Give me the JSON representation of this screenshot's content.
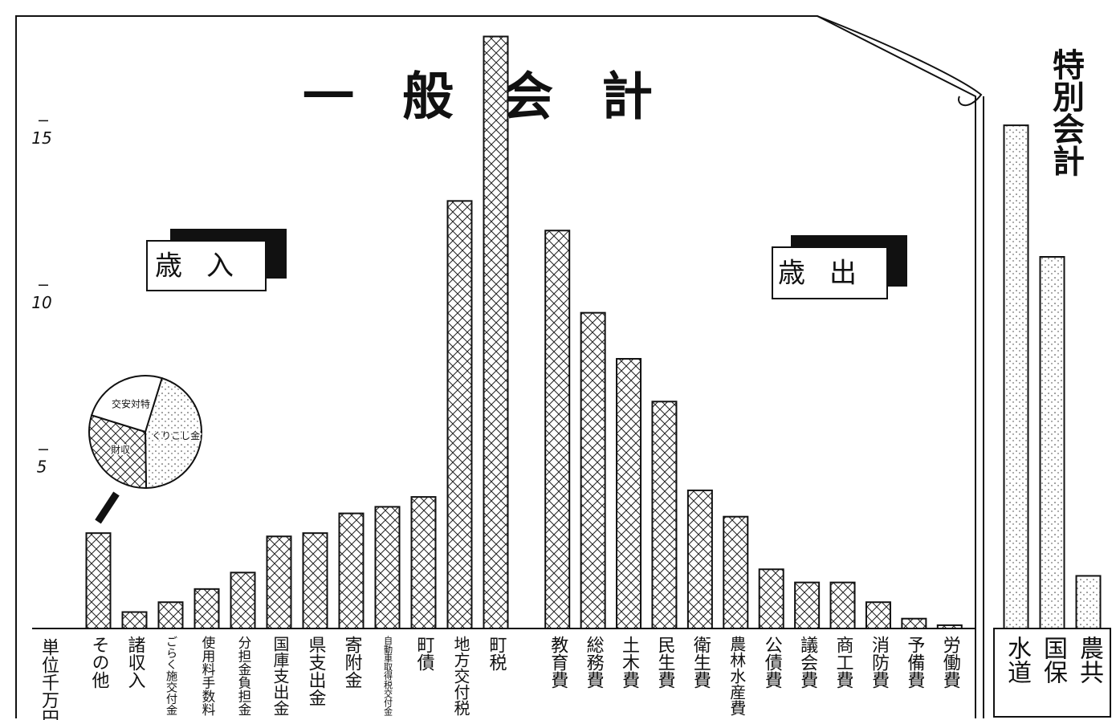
{
  "chart_data": [
    {
      "type": "bar",
      "title": "一般会計",
      "label": "歳入",
      "y_label": "単位千万円",
      "categories": [
        "その他",
        "諸収入",
        "ごらく施交付金",
        "使用料手数料",
        "分担金負担金",
        "国庫支出金",
        "県支出金",
        "寄附金",
        "自動車取得税交付金",
        "町債",
        "地方交付税",
        "町税"
      ],
      "values": [
        2.9,
        0.5,
        0.8,
        1.2,
        1.7,
        2.8,
        2.9,
        3.5,
        3.7,
        4.0,
        13.0,
        18.0
      ],
      "ylim": [
        0,
        18.5
      ],
      "yticks": [
        5,
        10,
        15
      ],
      "pattern": "crosshatch"
    },
    {
      "type": "bar",
      "label": "歳出",
      "categories": [
        "教育費",
        "総務費",
        "土木費",
        "民生費",
        "衛生費",
        "農林水産費",
        "公債費",
        "議会費",
        "商工費",
        "消防費",
        "予備費",
        "労働費"
      ],
      "values": [
        12.1,
        9.6,
        8.2,
        6.9,
        4.2,
        3.4,
        1.8,
        1.4,
        1.4,
        0.8,
        0.3,
        0.1
      ],
      "ylim": [
        0,
        18.5
      ],
      "pattern": "crosshatch"
    },
    {
      "type": "bar",
      "title": "特別会計",
      "categories": [
        "水道",
        "国保",
        "農共"
      ],
      "values": [
        15.3,
        11.3,
        1.6
      ],
      "ylim": [
        0,
        18.5
      ],
      "pattern": "dots"
    },
    {
      "type": "pie",
      "categories": [
        "くりこし金",
        "財収",
        "交安対特"
      ],
      "values": [
        45,
        30,
        25
      ]
    }
  ]
}
